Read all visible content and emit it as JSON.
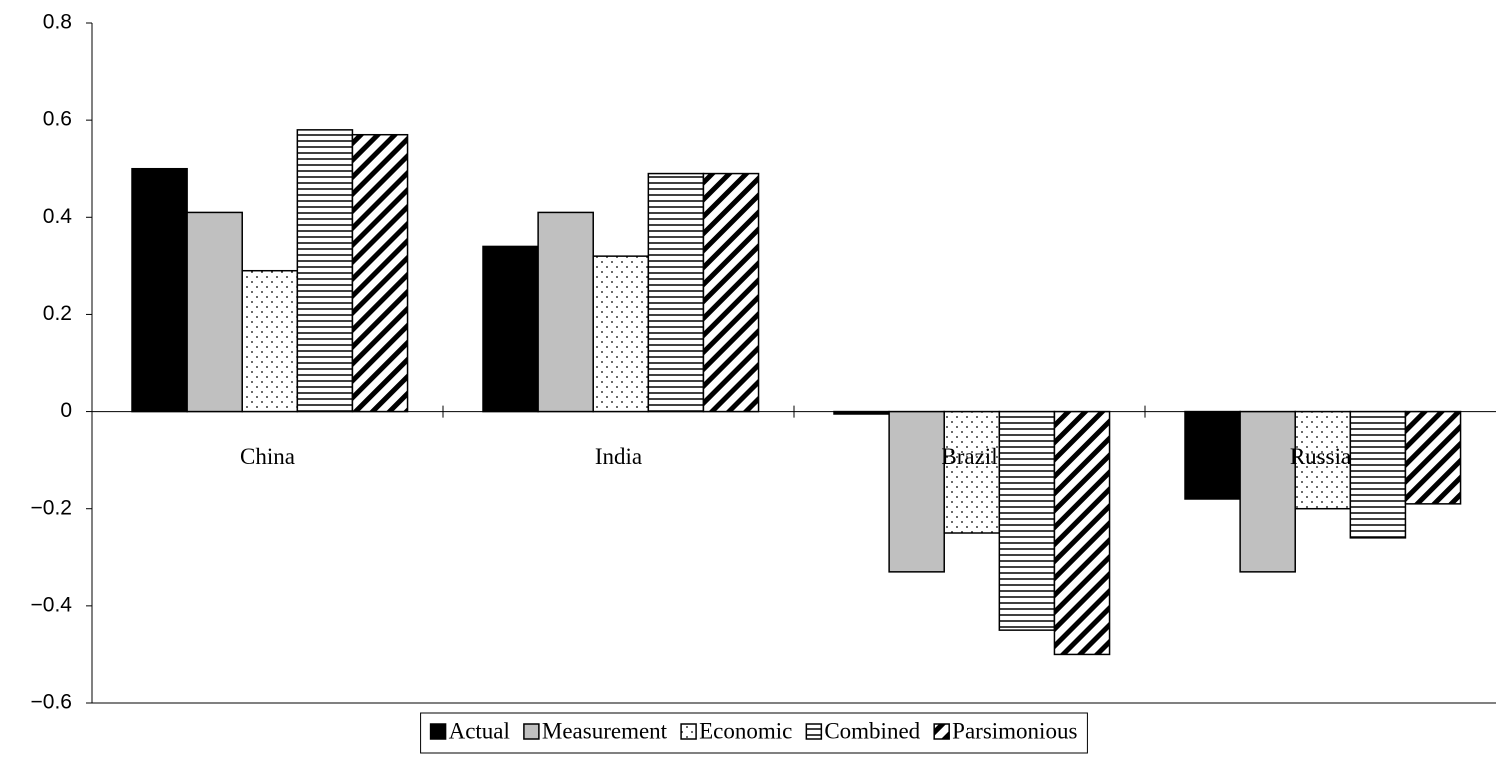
{
  "chart_data": {
    "type": "bar",
    "categories": [
      "China",
      "India",
      "Brazil",
      "Russia"
    ],
    "series": [
      {
        "name": "Actual",
        "color": "#000000",
        "pattern": "solid",
        "values": [
          0.5,
          0.34,
          -0.005,
          -0.18
        ]
      },
      {
        "name": "Measurement",
        "color": "#c0c0c0",
        "pattern": "solid",
        "values": [
          0.41,
          0.41,
          -0.33,
          -0.33
        ]
      },
      {
        "name": "Economic",
        "color": "#ffffff",
        "pattern": "dots",
        "values": [
          0.29,
          0.32,
          -0.25,
          -0.2
        ]
      },
      {
        "name": "Combined",
        "color": "#ffffff",
        "pattern": "hlines",
        "values": [
          0.58,
          0.49,
          -0.45,
          -0.26
        ]
      },
      {
        "name": "Parsimonious",
        "color": "#ffffff",
        "pattern": "diagonal",
        "values": [
          0.57,
          0.49,
          -0.5,
          -0.19
        ]
      }
    ],
    "ylim": [
      -0.6,
      0.8
    ],
    "yticks": [
      {
        "value": -0.6,
        "label": "−0.6"
      },
      {
        "value": -0.4,
        "label": "−0.4"
      },
      {
        "value": -0.2,
        "label": "−0.2"
      },
      0,
      0.2,
      0.4,
      0.6,
      0.8
    ],
    "legend": "bottom"
  }
}
